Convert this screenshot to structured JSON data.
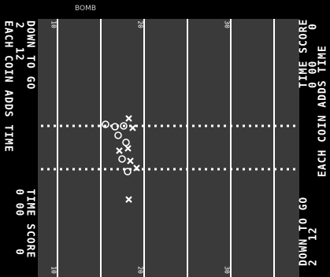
{
  "play_name": "BOMB",
  "yard_markers": {
    "top": [
      "10",
      "20",
      "30"
    ],
    "bottom": [
      "10",
      "20",
      "30"
    ]
  },
  "left_panel": {
    "down_label": "DOWN TO GO",
    "down": "2",
    "to_go": "12",
    "coin_message": "EACH COIN ADDS TIME",
    "time_score_label": "TIME SCORE",
    "time": "0 00",
    "score": "0"
  },
  "right_panel": {
    "down_label": "DOWN TO GO",
    "down": "2",
    "to_go": "12",
    "coin_message": "EACH COIN ADDS TIME",
    "time_score_label": "TIME SCORE",
    "time": "0 00",
    "score": "0"
  }
}
